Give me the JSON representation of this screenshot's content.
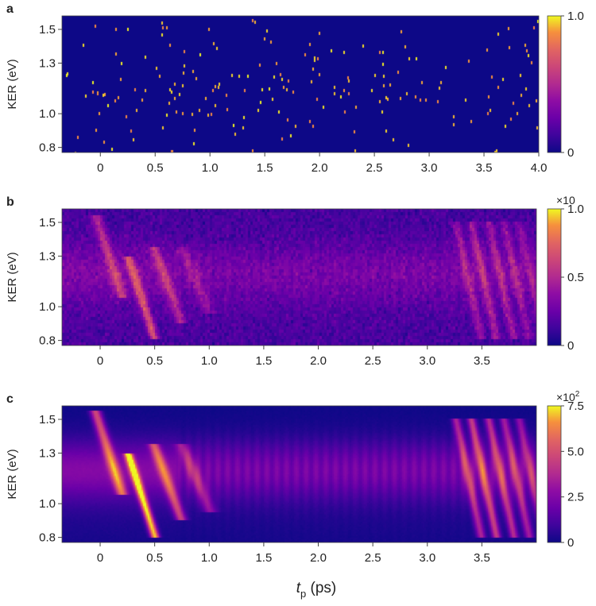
{
  "figure": {
    "xlabel_main": "t",
    "xlabel_sub": "p",
    "xlabel_unit": " (ps)"
  },
  "chart_data": [
    {
      "panel_label": "a",
      "type": "heatmap",
      "xlabel": "",
      "ylabel": "KER (eV)",
      "xlim": [
        -0.35,
        4.0
      ],
      "ylim": [
        0.77,
        1.58
      ],
      "x_ticks": [
        0,
        0.5,
        1.0,
        1.5,
        2.0,
        2.5,
        3.0,
        3.5,
        4.0
      ],
      "x_tick_labels": [
        "0",
        "0.5",
        "1.0",
        "1.5",
        "2.0",
        "2.5",
        "3.0",
        "3.5",
        "4.0"
      ],
      "y_ticks": [
        0.8,
        1.0,
        1.3,
        1.5
      ],
      "y_tick_labels": [
        "0.8",
        "1.0",
        "1.3",
        "1.5"
      ],
      "colorbar": {
        "min": 0,
        "max": 1.0,
        "tick_values": [
          0,
          1.0
        ],
        "tick_labels": [
          "0",
          "1.0"
        ],
        "multiplier": ""
      },
      "colormap": "plasma",
      "description_of_values": "sparse single counts"
    },
    {
      "panel_label": "b",
      "type": "heatmap",
      "xlabel": "",
      "ylabel": "KER (eV)",
      "xlim": [
        -0.35,
        4.0
      ],
      "ylim": [
        0.77,
        1.58
      ],
      "x_ticks": [
        0,
        0.5,
        1.0,
        1.5,
        2.0,
        2.5,
        3.0,
        3.5
      ],
      "x_tick_labels": [
        "0",
        "0.5",
        "1.0",
        "1.5",
        "2.0",
        "2.5",
        "3.0",
        "3.5"
      ],
      "y_ticks": [
        0.8,
        1.0,
        1.3,
        1.5
      ],
      "y_tick_labels": [
        "0.8",
        "1.0",
        "1.3",
        "1.5"
      ],
      "colorbar": {
        "min": 0,
        "max": 1.0,
        "tick_values": [
          0,
          0.5,
          1.0
        ],
        "tick_labels": [
          "0",
          "0.5",
          "1.0"
        ],
        "multiplier": "×10"
      },
      "colormap": "plasma"
    },
    {
      "panel_label": "c",
      "type": "heatmap",
      "xlabel": "",
      "ylabel": "KER (eV)",
      "xlim": [
        -0.35,
        4.0
      ],
      "ylim": [
        0.77,
        1.58
      ],
      "x_ticks": [
        0,
        0.5,
        1.0,
        1.5,
        2.0,
        2.5,
        3.0,
        3.5
      ],
      "x_tick_labels": [
        "0",
        "0.5",
        "1.0",
        "1.5",
        "2.0",
        "2.5",
        "3.0",
        "3.5"
      ],
      "y_ticks": [
        0.8,
        1.0,
        1.3,
        1.5
      ],
      "y_tick_labels": [
        "0.8",
        "1.0",
        "1.3",
        "1.5"
      ],
      "colorbar": {
        "min": 0,
        "max": 7.5,
        "tick_values": [
          0,
          2.5,
          5.0,
          7.5
        ],
        "tick_labels": [
          "0",
          "2.5",
          "5.0",
          "7.5"
        ],
        "multiplier": "×10",
        "multiplier_exponent": "2"
      },
      "colormap": "plasma"
    }
  ]
}
